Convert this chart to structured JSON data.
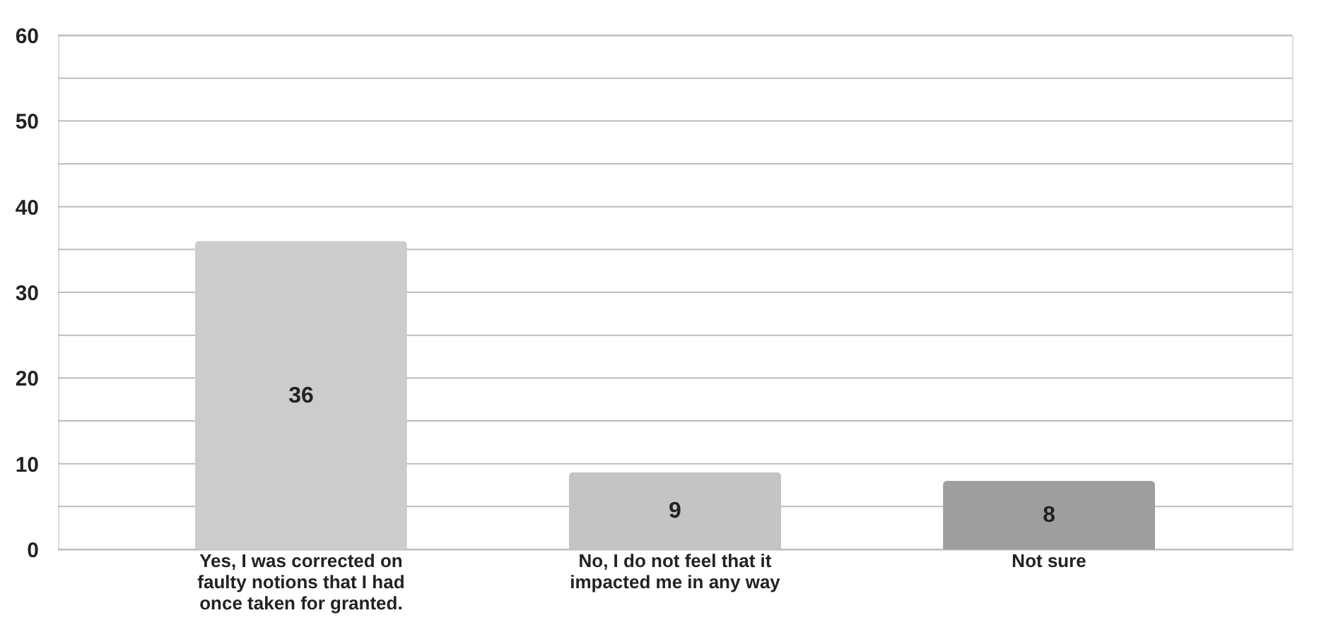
{
  "chart_data": {
    "type": "bar",
    "categories": [
      "Yes, I was corrected on faulty notions that I had once taken for granted.",
      "No, I do not feel that it impacted me in any way",
      "Not sure"
    ],
    "values": [
      36,
      9,
      8
    ],
    "colors": [
      "#cccccc",
      "#c4c4c4",
      "#9e9e9e"
    ],
    "ylim": [
      0,
      60
    ],
    "yticks": [
      0,
      {
        "value": 5,
        "label": null
      },
      10,
      {
        "value": 15,
        "label": null
      },
      20,
      {
        "value": 25,
        "label": null
      },
      30,
      {
        "value": 35,
        "label": null
      },
      40,
      {
        "value": 45,
        "label": null
      },
      50,
      {
        "value": 55,
        "label": null
      },
      60
    ],
    "grid": true,
    "data_labels": true
  }
}
